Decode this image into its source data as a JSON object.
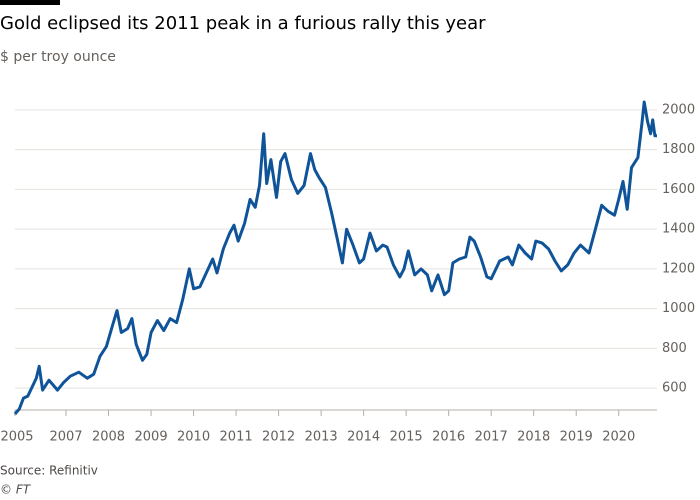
{
  "chart_data": {
    "type": "line",
    "title": "Gold eclipsed its 2011 peak in a furious rally this year",
    "subtitle": "$ per troy ounce",
    "source": "Source: Refinitiv",
    "credit": "© FT",
    "color": "#0f5499",
    "grid": true,
    "x": [
      2005.8,
      2005.9,
      2006.0,
      2006.1,
      2006.3,
      2006.37,
      2006.45,
      2006.6,
      2006.8,
      2006.95,
      2007.1,
      2007.3,
      2007.5,
      2007.65,
      2007.8,
      2007.95,
      2008.1,
      2008.2,
      2008.3,
      2008.45,
      2008.55,
      2008.65,
      2008.8,
      2008.9,
      2009.0,
      2009.15,
      2009.3,
      2009.45,
      2009.6,
      2009.75,
      2009.9,
      2010.0,
      2010.15,
      2010.3,
      2010.45,
      2010.55,
      2010.7,
      2010.85,
      2010.95,
      2011.05,
      2011.2,
      2011.33,
      2011.45,
      2011.55,
      2011.65,
      2011.72,
      2011.82,
      2011.95,
      2012.05,
      2012.15,
      2012.3,
      2012.45,
      2012.6,
      2012.75,
      2012.85,
      2012.95,
      2013.1,
      2013.25,
      2013.35,
      2013.5,
      2013.6,
      2013.75,
      2013.9,
      2014.0,
      2014.15,
      2014.3,
      2014.45,
      2014.55,
      2014.7,
      2014.85,
      2014.95,
      2015.05,
      2015.2,
      2015.35,
      2015.5,
      2015.6,
      2015.75,
      2015.9,
      2016.0,
      2016.1,
      2016.25,
      2016.4,
      2016.5,
      2016.6,
      2016.75,
      2016.9,
      2017.0,
      2017.2,
      2017.4,
      2017.5,
      2017.65,
      2017.8,
      2017.95,
      2018.05,
      2018.2,
      2018.35,
      2018.5,
      2018.65,
      2018.8,
      2018.95,
      2019.1,
      2019.3,
      2019.45,
      2019.6,
      2019.75,
      2019.9,
      2020.0,
      2020.1,
      2020.2,
      2020.3,
      2020.45,
      2020.55,
      2020.6,
      2020.68,
      2020.75,
      2020.8,
      2020.85,
      2020.9
    ],
    "values": [
      470,
      495,
      550,
      560,
      650,
      710,
      590,
      640,
      590,
      630,
      660,
      680,
      650,
      670,
      760,
      810,
      920,
      990,
      880,
      900,
      950,
      820,
      740,
      770,
      880,
      940,
      890,
      950,
      930,
      1050,
      1200,
      1100,
      1110,
      1180,
      1250,
      1180,
      1300,
      1380,
      1420,
      1340,
      1430,
      1550,
      1510,
      1620,
      1880,
      1630,
      1750,
      1560,
      1740,
      1780,
      1650,
      1580,
      1620,
      1780,
      1700,
      1660,
      1610,
      1480,
      1380,
      1230,
      1400,
      1320,
      1230,
      1250,
      1380,
      1290,
      1320,
      1310,
      1220,
      1160,
      1200,
      1290,
      1170,
      1200,
      1170,
      1090,
      1170,
      1070,
      1090,
      1230,
      1250,
      1260,
      1360,
      1340,
      1260,
      1160,
      1150,
      1240,
      1260,
      1220,
      1320,
      1280,
      1250,
      1340,
      1330,
      1300,
      1240,
      1190,
      1220,
      1280,
      1320,
      1280,
      1400,
      1520,
      1490,
      1470,
      1550,
      1640,
      1500,
      1710,
      1760,
      1940,
      2040,
      1940,
      1880,
      1950,
      1870,
      1870
    ],
    "xlim": [
      2005.8,
      2020.9
    ],
    "xticks": [
      2005,
      2007,
      2008,
      2009,
      2010,
      2011,
      2012,
      2013,
      2014,
      2015,
      2016,
      2017,
      2018,
      2019,
      2020
    ],
    "ylim": [
      490,
      2060
    ],
    "yticks": [
      600,
      800,
      1000,
      1200,
      1400,
      1600,
      1800,
      2000
    ]
  }
}
